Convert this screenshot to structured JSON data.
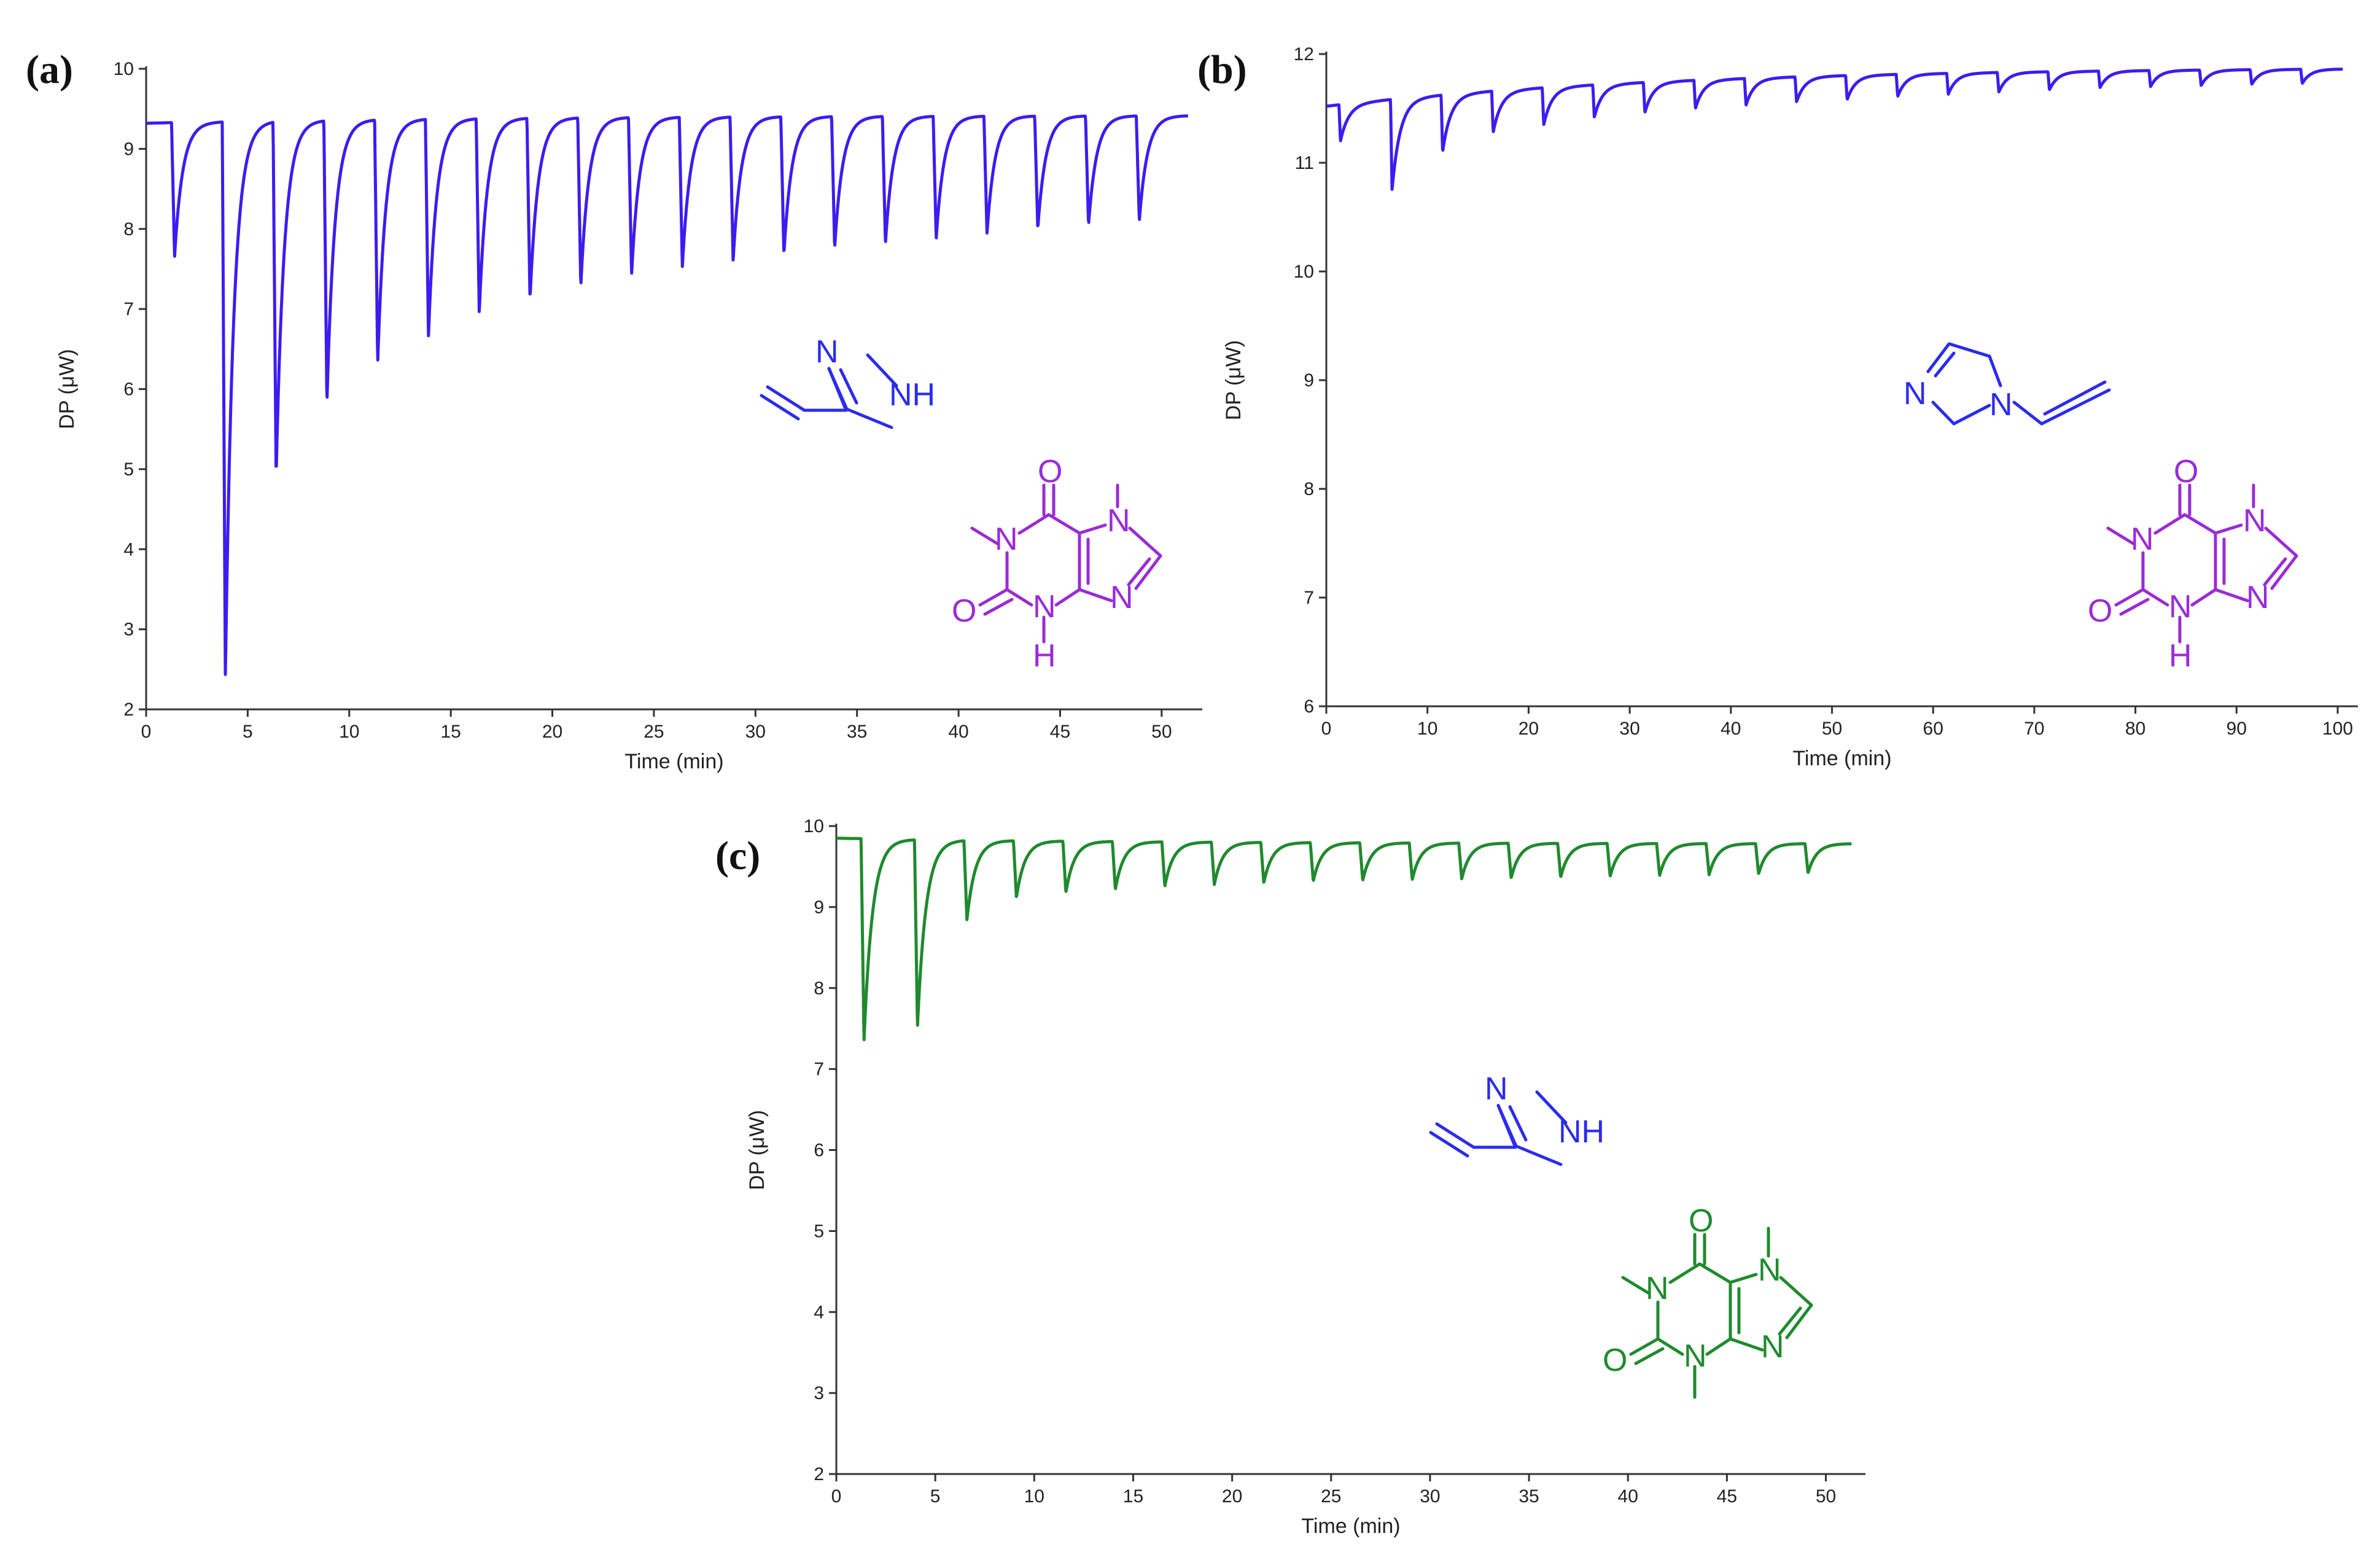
{
  "figure": {
    "panels": [
      {
        "letter": "(a)",
        "molecules": [
          {
            "name": "4-vinylimidazole",
            "labels": {
              "n": "N",
              "nh": "NH"
            }
          },
          {
            "name": "theophylline",
            "labels": {
              "o1": "O",
              "n1": "N",
              "n7": "N",
              "n9": "N",
              "o2": "O",
              "n3": "N",
              "h3": "H"
            }
          }
        ]
      },
      {
        "letter": "(b)",
        "molecules": [
          {
            "name": "1-vinylimidazole",
            "labels": {
              "n3": "N",
              "n1": "N"
            }
          },
          {
            "name": "theophylline",
            "labels": {
              "o1": "O",
              "n1": "N",
              "n7": "N",
              "n9": "N",
              "o2": "O",
              "n3": "N",
              "h3": "H"
            }
          }
        ]
      },
      {
        "letter": "(c)",
        "molecules": [
          {
            "name": "4-vinylimidazole",
            "labels": {
              "n": "N",
              "nh": "NH"
            }
          },
          {
            "name": "caffeine",
            "labels": {
              "o1": "O",
              "n1": "N",
              "n7": "N",
              "n9": "N",
              "o2": "O",
              "n3": "N"
            }
          }
        ]
      }
    ]
  },
  "colors": {
    "trace_blue": "#3d1cf0",
    "trace_green": "#1f8a2e",
    "molecule_blue": "#2b2bf0",
    "molecule_purple": "#9a2bd6",
    "molecule_green": "#1f8a2e"
  },
  "chart_data": [
    {
      "type": "line",
      "xlabel": "Time (min)",
      "ylabel": "DP (μW)",
      "xlim": [
        0,
        52
      ],
      "ylim": [
        2,
        10
      ],
      "xticks": [
        0,
        5,
        10,
        15,
        20,
        25,
        30,
        35,
        40,
        45,
        50
      ],
      "yticks": [
        2,
        3,
        4,
        5,
        6,
        7,
        8,
        9,
        10
      ],
      "grid": false,
      "trace": {
        "x_start": 0,
        "x_end": 51.3,
        "baseline_start": 9.32,
        "baseline_end": 9.42,
        "peak_times": [
          1.4,
          3.9,
          6.4,
          8.9,
          11.4,
          13.9,
          16.4,
          18.9,
          21.4,
          23.9,
          26.4,
          28.9,
          31.4,
          33.9,
          36.4,
          38.9,
          41.4,
          43.9,
          46.4,
          48.9
        ],
        "peak_minima": [
          7.65,
          2.38,
          4.9,
          5.82,
          6.32,
          6.65,
          6.95,
          7.12,
          7.28,
          7.42,
          7.52,
          7.6,
          7.68,
          7.76,
          7.82,
          7.88,
          7.94,
          8.0,
          8.05,
          8.1
        ]
      }
    },
    {
      "type": "line",
      "xlabel": "Time (min)",
      "ylabel": "DP (μW)",
      "xlim": [
        0,
        102
      ],
      "ylim": [
        6,
        12
      ],
      "xticks": [
        0,
        10,
        20,
        30,
        40,
        50,
        60,
        70,
        80,
        90,
        100
      ],
      "yticks": [
        6,
        7,
        8,
        9,
        10,
        11,
        12
      ],
      "grid": false,
      "trace": {
        "x_start": 0,
        "x_end": 100.5,
        "baseline_start": 11.52,
        "baseline_end": 11.88,
        "peak_times": [
          1.4,
          6.5,
          11.5,
          16.5,
          21.5,
          26.5,
          31.5,
          36.5,
          41.5,
          46.5,
          51.5,
          56.5,
          61.5,
          66.5,
          71.5,
          76.5,
          81.5,
          86.5,
          91.5,
          96.5
        ],
        "peak_minima": [
          11.2,
          10.75,
          11.1,
          11.28,
          11.35,
          11.42,
          11.46,
          11.5,
          11.53,
          11.56,
          11.58,
          11.61,
          11.63,
          11.65,
          11.67,
          11.69,
          11.7,
          11.71,
          11.72,
          11.73
        ]
      }
    },
    {
      "type": "line",
      "xlabel": "Time (min)",
      "ylabel": "DP (μW)",
      "xlim": [
        0,
        52
      ],
      "ylim": [
        2,
        10
      ],
      "xticks": [
        0,
        5,
        10,
        15,
        20,
        25,
        30,
        35,
        40,
        45,
        50
      ],
      "yticks": [
        2,
        3,
        4,
        5,
        6,
        7,
        8,
        9,
        10
      ],
      "grid": false,
      "trace": {
        "x_start": 0,
        "x_end": 51.3,
        "baseline_start": 9.85,
        "baseline_end": 9.78,
        "peak_times": [
          1.4,
          4.1,
          6.6,
          9.1,
          11.6,
          14.1,
          16.6,
          19.1,
          21.6,
          24.1,
          26.6,
          29.1,
          31.6,
          34.1,
          36.6,
          39.1,
          41.6,
          44.1,
          46.6,
          49.1
        ],
        "peak_minima": [
          7.35,
          7.52,
          8.85,
          9.12,
          9.18,
          9.22,
          9.26,
          9.28,
          9.3,
          9.32,
          9.33,
          9.34,
          9.35,
          9.36,
          9.37,
          9.38,
          9.39,
          9.4,
          9.41,
          9.42
        ]
      }
    }
  ]
}
